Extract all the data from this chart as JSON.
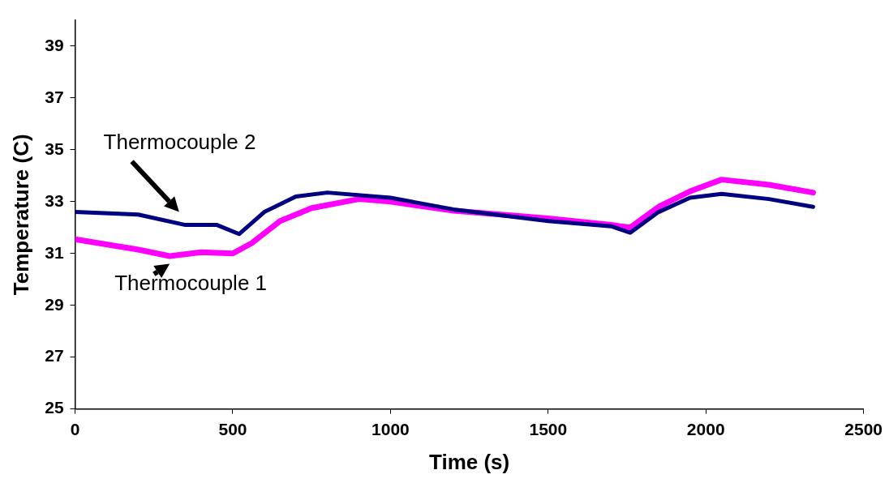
{
  "chart_data": {
    "type": "line",
    "xlabel": "Time (s)",
    "ylabel": "Temperature (C)",
    "xlim": [
      0,
      2500
    ],
    "xticks": [
      0,
      500,
      1000,
      1500,
      2000,
      2500
    ],
    "ylim": [
      25,
      40
    ],
    "yticks": [
      25,
      27,
      29,
      31,
      33,
      35,
      37,
      39
    ],
    "grid": false,
    "legend": false,
    "marker": "none",
    "line_style": "solid",
    "series": [
      {
        "name": "Thermocouple 2",
        "color": "#000080",
        "x": [
          0,
          200,
          350,
          450,
          520,
          600,
          700,
          800,
          1000,
          1200,
          1500,
          1700,
          1760,
          1850,
          1950,
          2050,
          2200,
          2340
        ],
        "values": [
          32.6,
          32.5,
          32.1,
          32.1,
          31.75,
          32.6,
          33.2,
          33.35,
          33.15,
          32.7,
          32.25,
          32.05,
          31.8,
          32.6,
          33.15,
          33.3,
          33.1,
          32.8
        ]
      },
      {
        "name": "Thermocouple 1",
        "color": "#ff00ff",
        "x": [
          0,
          200,
          300,
          400,
          500,
          560,
          650,
          750,
          900,
          1000,
          1200,
          1500,
          1700,
          1760,
          1850,
          1950,
          2050,
          2200,
          2340
        ],
        "values": [
          31.55,
          31.15,
          30.9,
          31.05,
          31.0,
          31.4,
          32.25,
          32.75,
          33.1,
          33.0,
          32.65,
          32.35,
          32.1,
          32.0,
          32.8,
          33.4,
          33.85,
          33.65,
          33.35
        ]
      }
    ]
  }
}
